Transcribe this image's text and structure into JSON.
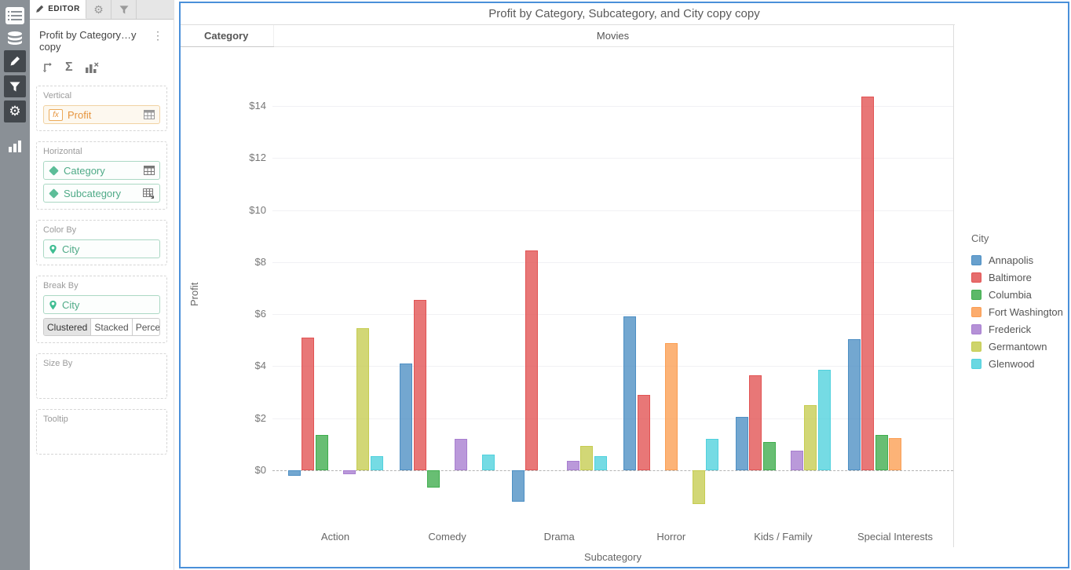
{
  "icons": {
    "kebab_menu": "⋮",
    "sigma": "Σ",
    "gear": "⚙"
  },
  "editor": {
    "tab_label": "EDITOR",
    "panel_title": "Profit by Category…y copy",
    "vertical": {
      "label": "Vertical",
      "field": {
        "name": "Profit"
      }
    },
    "horizontal": {
      "label": "Horizontal",
      "fields": [
        {
          "name": "Category"
        },
        {
          "name": "Subcategory"
        }
      ]
    },
    "color_by": {
      "label": "Color By",
      "field": {
        "name": "City"
      }
    },
    "break_by": {
      "label": "Break By",
      "field": {
        "name": "City"
      },
      "modes": [
        "Clustered",
        "Stacked",
        "Percent"
      ],
      "selected_mode": "Clustered"
    },
    "size_by": {
      "label": "Size By"
    },
    "tooltip": {
      "label": "Tooltip"
    }
  },
  "chart": {
    "title": "Profit by Category, Subcategory, and City copy copy",
    "header": {
      "row_label": "Category",
      "cell_value": "Movies"
    },
    "legend_title": "City",
    "border_color": "#4a90d9"
  },
  "chart_data": {
    "type": "bar",
    "title": "Profit by Category, Subcategory, and City copy copy",
    "xlabel": "Subcategory",
    "ylabel": "Profit",
    "categories": [
      "Action",
      "Comedy",
      "Drama",
      "Horror",
      "Kids / Family",
      "Special Interests"
    ],
    "series": [
      {
        "name": "Annapolis",
        "color": "#4d8fc4",
        "values": [
          -0.2,
          4.1,
          -1.2,
          5.9,
          2.05,
          5.05
        ]
      },
      {
        "name": "Baltimore",
        "color": "#e25353",
        "values": [
          5.1,
          6.55,
          8.45,
          2.9,
          3.65,
          14.35
        ]
      },
      {
        "name": "Columbia",
        "color": "#3fad4d",
        "values": [
          1.35,
          -0.65,
          null,
          null,
          1.1,
          1.35
        ]
      },
      {
        "name": "Fort Washington",
        "color": "#fb9e53",
        "values": [
          null,
          null,
          null,
          4.9,
          null,
          1.25
        ]
      },
      {
        "name": "Frederick",
        "color": "#a87ed0",
        "values": [
          -0.15,
          1.2,
          0.35,
          null,
          0.75,
          null
        ]
      },
      {
        "name": "Germantown",
        "color": "#c6cc51",
        "values": [
          5.45,
          null,
          0.95,
          -1.3,
          2.5,
          null
        ]
      },
      {
        "name": "Glenwood",
        "color": "#50d1dd",
        "values": [
          0.55,
          0.6,
          0.55,
          1.2,
          3.85,
          null
        ]
      }
    ],
    "ylim": [
      -2,
      16
    ],
    "yticks": [
      "$0",
      "$2",
      "$4",
      "$6",
      "$8",
      "$10",
      "$12",
      "$14"
    ],
    "ytick_values": [
      0,
      2,
      4,
      6,
      8,
      10,
      12,
      14
    ],
    "zero_line": "dashed",
    "grid": true,
    "legend_position": "right",
    "break_mode": "Clustered"
  }
}
